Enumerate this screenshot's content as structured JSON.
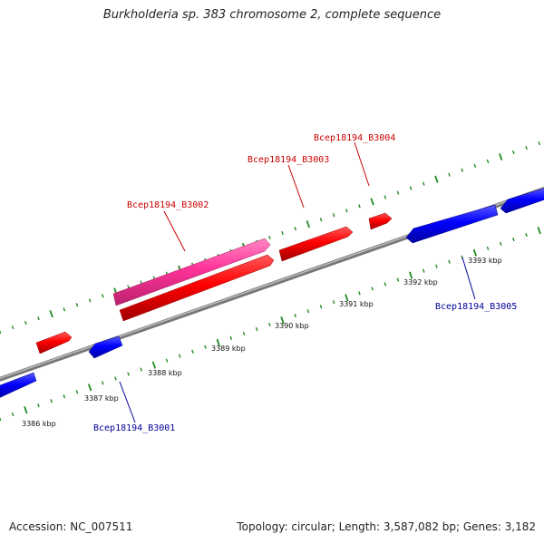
{
  "title": "Burkholderia sp. 383 chromosome 2, complete sequence",
  "footer": {
    "accession": "Accession: NC_007511",
    "stats": "Topology: circular; Length: 3,587,082 bp; Genes: 3,182"
  },
  "colors": {
    "forward_gene": "#ff0000",
    "reverse_gene": "#0000ff",
    "selected_gene": "#ff3399",
    "backbone": "#888888",
    "ticks": "#228b22",
    "forward_label": "#cc0000",
    "reverse_label": "#000099"
  },
  "gene_labels": [
    {
      "name": "Bcep18194_B3001",
      "strand": "reverse"
    },
    {
      "name": "Bcep18194_B3002",
      "strand": "forward"
    },
    {
      "name": "Bcep18194_B3003",
      "strand": "forward"
    },
    {
      "name": "Bcep18194_B3004",
      "strand": "forward"
    },
    {
      "name": "Bcep18194_B3005",
      "strand": "reverse"
    }
  ],
  "tick_labels": [
    "3386 kbp",
    "3387 kbp",
    "3388 kbp",
    "3389 kbp",
    "3390 kbp",
    "3391 kbp",
    "3392 kbp",
    "3393 kbp"
  ]
}
